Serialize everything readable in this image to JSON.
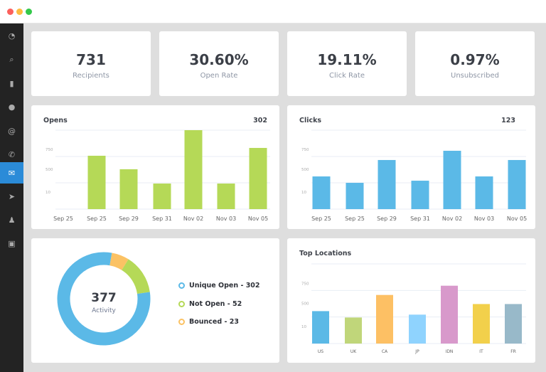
{
  "window": {
    "controls": [
      {
        "name": "close",
        "color": "#fc605c"
      },
      {
        "name": "minimize",
        "color": "#fdbc40"
      },
      {
        "name": "maximize",
        "color": "#34c84a"
      }
    ]
  },
  "sidebar": {
    "items": [
      {
        "icon": "dashboard-icon",
        "glyph": "◔"
      },
      {
        "icon": "search-icon",
        "glyph": "⌕"
      },
      {
        "icon": "bar-chart-icon",
        "glyph": "▮"
      },
      {
        "icon": "chat-icon",
        "glyph": "●"
      },
      {
        "icon": "at-icon",
        "glyph": "@"
      },
      {
        "icon": "phone-icon",
        "glyph": "✆"
      },
      {
        "icon": "mail-icon",
        "glyph": "✉",
        "active": true
      },
      {
        "icon": "send-icon",
        "glyph": "➤"
      },
      {
        "icon": "user-icon",
        "glyph": "♟"
      },
      {
        "icon": "clipboard-icon",
        "glyph": "▣"
      }
    ]
  },
  "stats": [
    {
      "value": "731",
      "label": "Recipients"
    },
    {
      "value": "30.60%",
      "label": "Open Rate"
    },
    {
      "value": "19.11%",
      "label": "Click Rate"
    },
    {
      "value": "0.97%",
      "label": "Unsubscribed"
    }
  ],
  "chart_data": [
    {
      "type": "bar",
      "title": "Opens",
      "total": "302",
      "color": "#b5d957",
      "categories": [
        "Sep 25",
        "Sep 25",
        "Sep 29",
        "Sep 31",
        "Nov 02",
        "Nov 03",
        "Nov 05"
      ],
      "values": [
        0,
        676,
        505,
        324,
        1000,
        324,
        775
      ],
      "yticks": [
        "750",
        "500",
        "10"
      ],
      "ylim": [
        0,
        1000
      ],
      "grid": true
    },
    {
      "type": "bar",
      "title": "Clicks",
      "total": "123",
      "color": "#5bb9e7",
      "categories": [
        "Sep 25",
        "Sep 25",
        "Sep 29",
        "Sep 31",
        "Nov 02",
        "Nov 03",
        "Nov 05"
      ],
      "values": [
        414,
        333,
        622,
        360,
        739,
        414,
        622
      ],
      "yticks": [
        "750",
        "500",
        "10"
      ],
      "ylim": [
        0,
        1000
      ],
      "grid": true
    },
    {
      "type": "pie",
      "donut": true,
      "center_value": "377",
      "center_label": "Activity",
      "slices": [
        {
          "label": "Unique Open - 302",
          "value": 302,
          "color": "#5bb9e7"
        },
        {
          "label": "Not Open - 52",
          "value": 52,
          "color": "#b5d957"
        },
        {
          "label": "Bounced - 23",
          "value": 23,
          "color": "#fbc264"
        }
      ]
    },
    {
      "type": "bar",
      "title": "Top Locations",
      "categories": [
        "US",
        "UK",
        "CA",
        "JP",
        "IDN",
        "IT",
        "FR"
      ],
      "values": [
        407,
        327,
        610,
        363,
        726,
        496,
        496
      ],
      "colors": [
        "#5bb9e6",
        "#c0d67a",
        "#fdc064",
        "#8fd3fe",
        "#d899cb",
        "#f2d04b",
        "#98b9c9"
      ],
      "yticks": [
        "750",
        "500",
        "10"
      ],
      "ylim": [
        0,
        1000
      ],
      "grid": true
    }
  ]
}
